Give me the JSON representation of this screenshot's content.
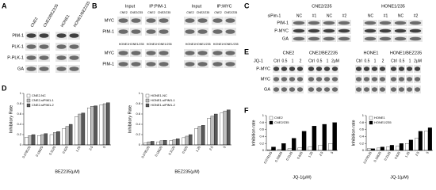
{
  "panels": {
    "A": {
      "label": "A",
      "columns": [
        "CNE2",
        "CNE2/BEZ235",
        "HONE1",
        "HONE1/BEZ235"
      ],
      "rows": [
        "PIM-1",
        "PLK-1",
        "P-PLK-1",
        "GA"
      ]
    },
    "B": {
      "label": "B",
      "groups": [
        "Input",
        "IP:PIM-1",
        "Input",
        "IP:MYC"
      ],
      "top_lanes": [
        "CNE2",
        "CNE2/235",
        "CNE2",
        "CNE2/235",
        "CNE2",
        "CNE2/235",
        "CNE2",
        "CNE2/235"
      ],
      "top_rows": [
        "MYC",
        "PIM-1"
      ],
      "bottom_lanes": [
        "HONE1",
        "HONE1/235",
        "HONE1",
        "HONE1/235",
        "HONE1",
        "HONE1/235",
        "HONE1",
        "HONE1/235"
      ],
      "bottom_rows": [
        "MYC",
        "PIM-1"
      ]
    },
    "C": {
      "label": "C",
      "treatment": "siPim-1",
      "cells": [
        "CNE2/235",
        "HONE1/235"
      ],
      "lanes": [
        "NC",
        "#1",
        "NC",
        "#2",
        "NC",
        "#1",
        "NC",
        "#2"
      ],
      "rows": [
        "PIM-1",
        "P-MYC",
        "GA"
      ]
    },
    "D": {
      "label": "D"
    },
    "E": {
      "label": "E",
      "treatment": "JQ-1",
      "cells": [
        "CNE2",
        "CNE2/BEZ235",
        "HONE1",
        "HONE1/BEZ235"
      ],
      "lanes": [
        [
          "Ctrl",
          "0.5",
          "1",
          "2"
        ],
        [
          "Ctrl",
          "0.5",
          "1",
          "2μM"
        ],
        [
          "Ctrl",
          "0.5",
          "1",
          "2"
        ],
        [
          "Ctrl",
          "0.5",
          "1",
          "2μM"
        ]
      ],
      "rows": [
        "P-MYC",
        "MYC",
        "GA"
      ]
    },
    "F": {
      "label": "F"
    }
  },
  "chart_data": [
    {
      "type": "bar",
      "xlabel": "BEZ235(μM)",
      "ylabel": "Inhibitory Rate",
      "categories": [
        "0.078125",
        "0.15625",
        "0.3125",
        "0.625",
        "1.25",
        "2.5",
        "5"
      ],
      "series": [
        {
          "name": "CNE2-NC",
          "color": "#ffffff",
          "values": [
            0.15,
            0.18,
            0.2,
            0.32,
            0.55,
            0.72,
            0.78
          ]
        },
        {
          "name": "CNE2-siPIM1-1",
          "color": "#bfbfbf",
          "values": [
            0.18,
            0.2,
            0.24,
            0.36,
            0.6,
            0.75,
            0.8
          ]
        },
        {
          "name": "CNE2-siPIM1-2",
          "color": "#595959",
          "values": [
            0.2,
            0.22,
            0.26,
            0.4,
            0.62,
            0.76,
            0.82
          ]
        }
      ],
      "ylim": [
        0,
        1
      ],
      "yticks": [
        0,
        0.2,
        0.4,
        0.6,
        0.8,
        1
      ]
    },
    {
      "type": "bar",
      "xlabel": "BEZ235(μM)",
      "ylabel": "Inhibitory Rate",
      "categories": [
        "0.078125",
        "0.15625",
        "0.3125",
        "0.625",
        "1.25",
        "2.5",
        "5"
      ],
      "series": [
        {
          "name": "HONE1-NC",
          "color": "#ffffff",
          "values": [
            0.04,
            0.06,
            0.08,
            0.14,
            0.32,
            0.52,
            0.62
          ]
        },
        {
          "name": "HONE1-siPIM1-1",
          "color": "#bfbfbf",
          "values": [
            0.06,
            0.08,
            0.1,
            0.17,
            0.36,
            0.56,
            0.66
          ]
        },
        {
          "name": "HONE1-siPIM1-2",
          "color": "#595959",
          "values": [
            0.07,
            0.09,
            0.12,
            0.2,
            0.38,
            0.6,
            0.68
          ]
        }
      ],
      "ylim": [
        0,
        1
      ],
      "yticks": [
        0,
        0.2,
        0.4,
        0.6,
        0.8,
        1
      ]
    },
    {
      "type": "bar",
      "xlabel": "JQ-1(μM)",
      "ylabel": "Inhibition rate",
      "categories": [
        "0.078125",
        "0.15625",
        "0.3125",
        "0.625",
        "1.25",
        "2.5",
        "5"
      ],
      "series": [
        {
          "name": "CNE2",
          "color": "#ffffff",
          "values": [
            0.02,
            0.03,
            0.05,
            0.08,
            0.1,
            0.15,
            0.2
          ]
        },
        {
          "name": "CNE2/235",
          "color": "#000000",
          "values": [
            0.1,
            0.2,
            0.35,
            0.55,
            0.7,
            0.75,
            0.8
          ]
        }
      ],
      "ylim": [
        0,
        1
      ],
      "yticks": [
        0,
        0.2,
        0.4,
        0.6,
        0.8,
        1
      ]
    },
    {
      "type": "bar",
      "xlabel": "JQ-1(μM)",
      "ylabel": "Inhibition rate",
      "categories": [
        "0.078125",
        "0.15625",
        "0.3125",
        "0.625",
        "1.25",
        "2.5",
        "5"
      ],
      "series": [
        {
          "name": "HONE1",
          "color": "#ffffff",
          "values": [
            0.05,
            0.07,
            0.1,
            0.12,
            0.2,
            0.35,
            0.55
          ]
        },
        {
          "name": "HONE1/235",
          "color": "#000000",
          "values": [
            0.05,
            0.1,
            0.15,
            0.2,
            0.3,
            0.55,
            0.65
          ]
        }
      ],
      "ylim": [
        0,
        1
      ],
      "yticks": [
        0,
        0.2,
        0.4,
        0.6,
        0.8,
        1
      ]
    }
  ]
}
